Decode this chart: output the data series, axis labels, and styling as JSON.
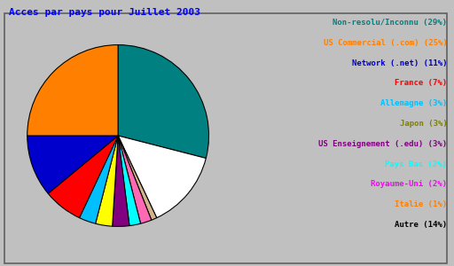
{
  "title": "Acces par pays pour Juillet 2003",
  "title_color": "#0000ff",
  "title_fontsize": 8,
  "background_color": "#c0c0c0",
  "labels": [
    "Non-resolu/Inconnu",
    "US Commercial (.com)",
    "Network (.net)",
    "France",
    "Allemagne",
    "Japon",
    "US Enseignement (.edu)",
    "Pays Bas",
    "Royaume-Uni",
    "Italie",
    "Autre"
  ],
  "percentages": [
    29,
    25,
    11,
    7,
    3,
    3,
    3,
    2,
    2,
    1,
    14
  ],
  "pie_order": [
    0,
    10,
    9,
    8,
    7,
    6,
    5,
    4,
    3,
    2,
    1
  ],
  "slice_colors": [
    "#008080",
    "#ff8000",
    "#0000cd",
    "#ff0000",
    "#00bfff",
    "#ffff00",
    "#800080",
    "#00ffff",
    "#ff69b4",
    "#d2b48c",
    "#ffffff"
  ],
  "legend_text_colors": [
    "#008080",
    "#ff8000",
    "#0000cd",
    "#ff0000",
    "#00bfff",
    "#808000",
    "#800080",
    "#00ffff",
    "#ff00ff",
    "#ff8000",
    "#000000"
  ]
}
